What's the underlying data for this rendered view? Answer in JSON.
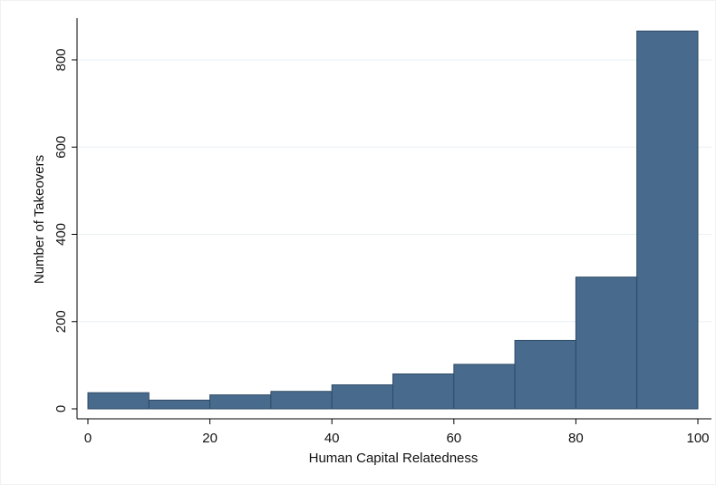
{
  "chart_data": {
    "type": "bar",
    "title": "",
    "xlabel": "Human Capital Relatedness",
    "ylabel": "Number of Takeovers",
    "bins": [
      {
        "start": 0,
        "end": 10,
        "value": 37
      },
      {
        "start": 10,
        "end": 20,
        "value": 20
      },
      {
        "start": 20,
        "end": 30,
        "value": 32
      },
      {
        "start": 30,
        "end": 40,
        "value": 40
      },
      {
        "start": 40,
        "end": 50,
        "value": 55
      },
      {
        "start": 50,
        "end": 60,
        "value": 80
      },
      {
        "start": 60,
        "end": 70,
        "value": 102
      },
      {
        "start": 70,
        "end": 80,
        "value": 157
      },
      {
        "start": 80,
        "end": 90,
        "value": 302
      },
      {
        "start": 90,
        "end": 100,
        "value": 866
      }
    ],
    "xlim": [
      0,
      100
    ],
    "ylim": [
      0,
      880
    ],
    "xticks": [
      0,
      20,
      40,
      60,
      80,
      100
    ],
    "yticks": [
      0,
      200,
      400,
      600,
      800
    ],
    "xtick_labels": [
      "0",
      "20",
      "40",
      "60",
      "80",
      "100"
    ],
    "ytick_labels": [
      "0",
      "200",
      "400",
      "600",
      "800"
    ],
    "grid": "horizontal",
    "legend": "none",
    "colors": {
      "bar_fill": "#486b8d",
      "bar_edge": "#2e4a66",
      "grid": "#eaf0f4",
      "axis": "#000000",
      "background": "#ffffff"
    }
  }
}
